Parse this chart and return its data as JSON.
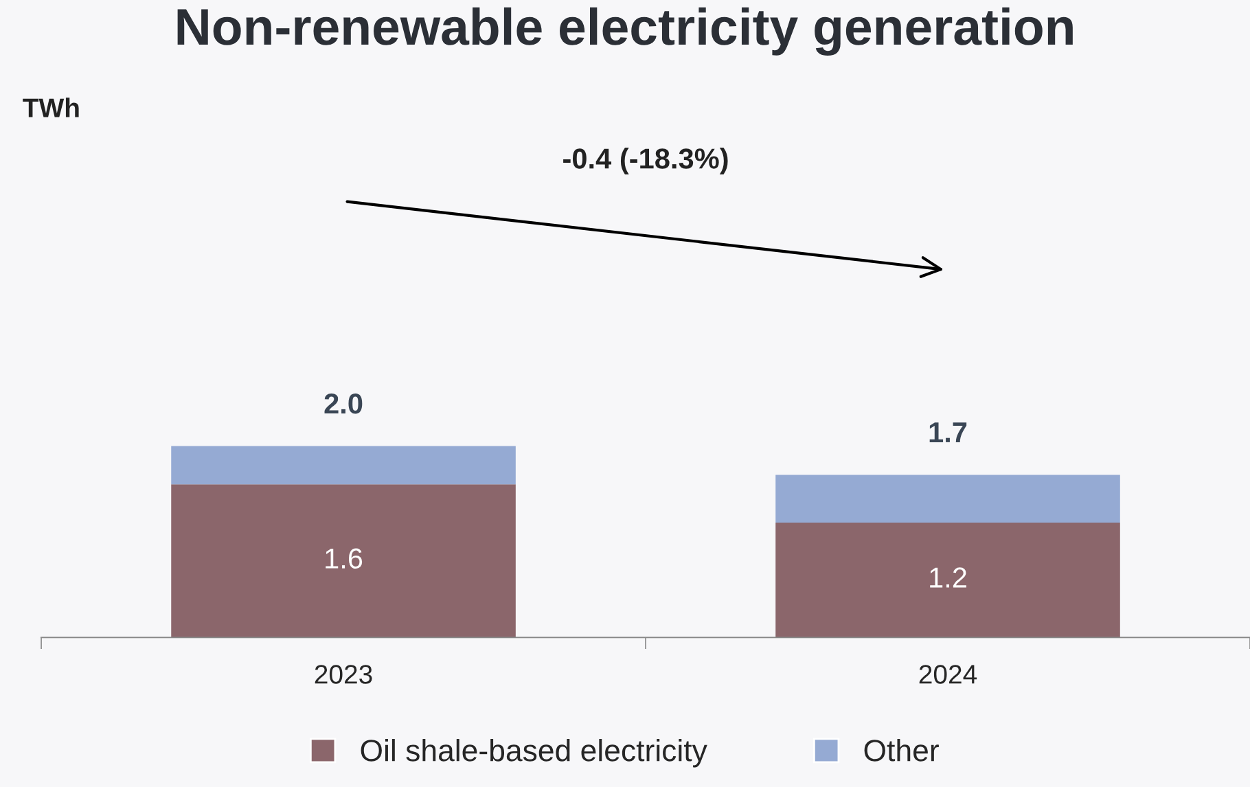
{
  "chart_data": {
    "type": "bar",
    "title": "Non-renewable electricity generation",
    "categories": [
      "2023",
      "2024"
    ],
    "stacked": true,
    "series": [
      {
        "name": "Oil shale-based electricity",
        "color": "#8b666b",
        "values": [
          1.6,
          1.2
        ],
        "value_labels": [
          "1.6",
          "1.2"
        ]
      },
      {
        "name": "Other",
        "color": "#95aad3",
        "values": [
          0.4,
          0.5
        ]
      }
    ],
    "totals": [
      "2.0",
      "1.7"
    ],
    "annotations": [
      "TWh",
      "-0.4 (-18.3%)"
    ],
    "legend": "bottom",
    "grid": false
  }
}
